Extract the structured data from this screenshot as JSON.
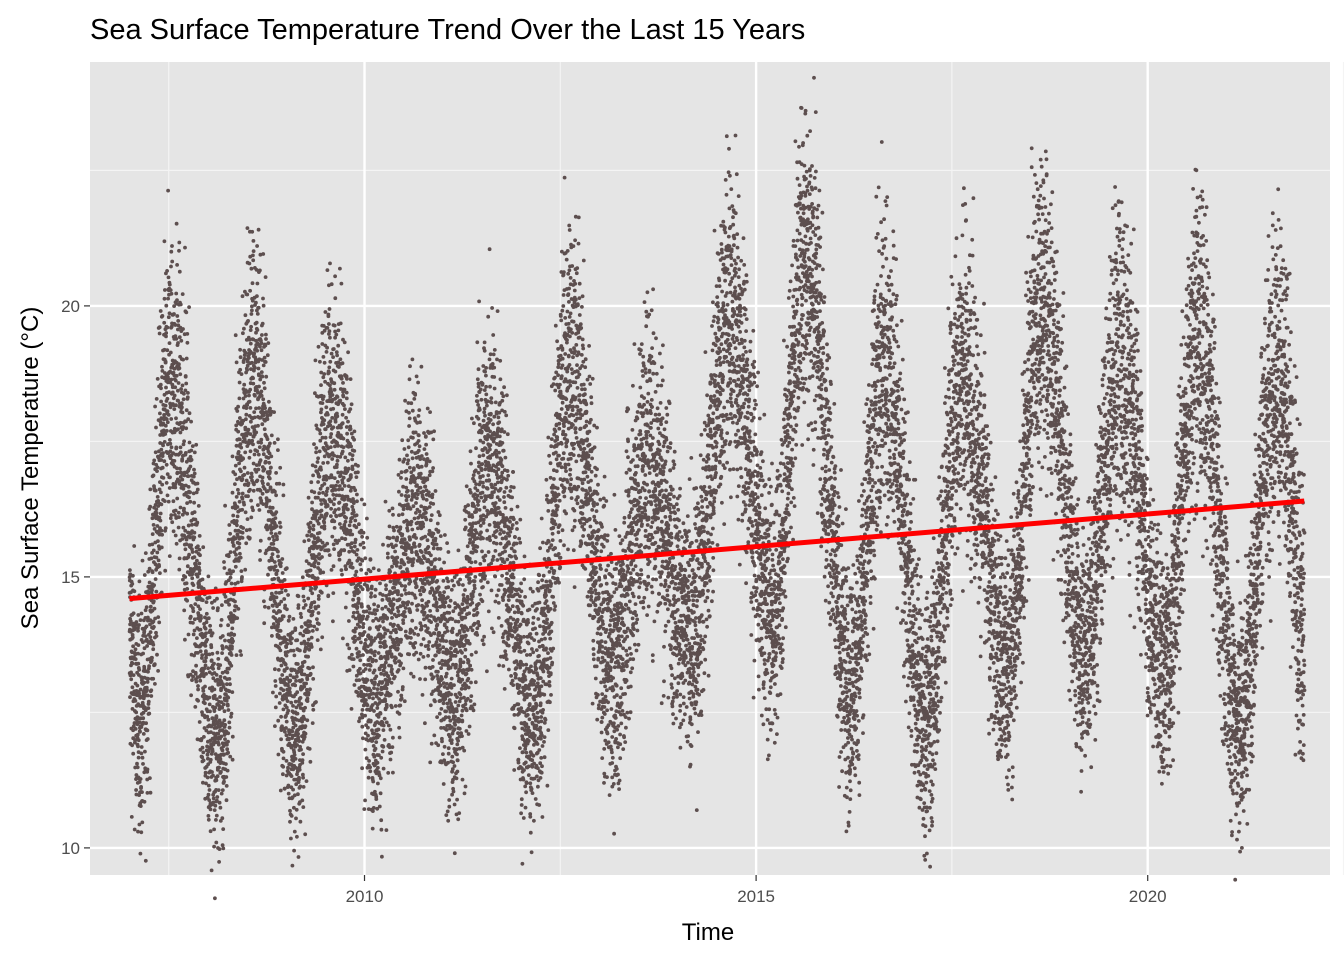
{
  "chart_data": {
    "type": "scatter",
    "title": "Sea Surface Temperature Trend Over the Last 15 Years",
    "xlabel": "Time",
    "ylabel": "Sea Surface Temperature (°C)",
    "xlim": [
      "2006-07-01",
      "2022-04-30"
    ],
    "ylim": [
      9.5,
      24.5
    ],
    "x_ticks": [
      {
        "date": "2010-01-01",
        "label": "2010"
      },
      {
        "date": "2015-01-01",
        "label": "2015"
      },
      {
        "date": "2020-01-01",
        "label": "2020"
      }
    ],
    "y_ticks": [
      {
        "value": 10,
        "label": "10"
      },
      {
        "value": 15,
        "label": "15"
      },
      {
        "value": 20,
        "label": "20"
      }
    ],
    "grid": true,
    "legend": "none",
    "point_color": "#5d4f4f",
    "trend_color": "#ff0000",
    "background_color": "#e5e5e5",
    "date_range": [
      "2007-01-01",
      "2021-12-31"
    ],
    "trend_line": {
      "start": {
        "date": "2007-01-01",
        "value": 14.6
      },
      "end": {
        "date": "2021-12-31",
        "value": 16.4
      }
    },
    "series": [
      {
        "seasonal_peaks": [
          {
            "date": "2007-07-15",
            "value": 21.0
          },
          {
            "date": "2008-08-01",
            "value": 21.2
          },
          {
            "date": "2009-08-01",
            "value": 20.4
          },
          {
            "date": "2010-09-01",
            "value": 18.7
          },
          {
            "date": "2011-08-01",
            "value": 19.8
          },
          {
            "date": "2012-08-15",
            "value": 21.4
          },
          {
            "date": "2013-08-15",
            "value": 19.8
          },
          {
            "date": "2014-09-01",
            "value": 22.4
          },
          {
            "date": "2015-08-20",
            "value": 23.6
          },
          {
            "date": "2016-08-20",
            "value": 21.6
          },
          {
            "date": "2017-08-20",
            "value": 21.3
          },
          {
            "date": "2018-08-20",
            "value": 22.7
          },
          {
            "date": "2019-08-20",
            "value": 21.7
          },
          {
            "date": "2020-08-20",
            "value": 22.0
          },
          {
            "date": "2021-08-20",
            "value": 21.4
          }
        ],
        "seasonal_troughs": [
          {
            "date": "2007-02-10",
            "value": 10.3
          },
          {
            "date": "2008-02-10",
            "value": 10.1
          },
          {
            "date": "2009-02-10",
            "value": 10.3
          },
          {
            "date": "2010-02-25",
            "value": 10.9
          },
          {
            "date": "2011-02-25",
            "value": 10.8
          },
          {
            "date": "2012-03-01",
            "value": 10.5
          },
          {
            "date": "2013-03-01",
            "value": 11.3
          },
          {
            "date": "2014-03-01",
            "value": 11.9
          },
          {
            "date": "2015-03-15",
            "value": 12.3
          },
          {
            "date": "2016-03-15",
            "value": 10.9
          },
          {
            "date": "2017-03-01",
            "value": 10.4
          },
          {
            "date": "2018-03-15",
            "value": 11.3
          },
          {
            "date": "2019-03-15",
            "value": 11.7
          },
          {
            "date": "2020-03-15",
            "value": 11.4
          },
          {
            "date": "2021-03-01",
            "value": 10.3
          }
        ]
      }
    ]
  }
}
